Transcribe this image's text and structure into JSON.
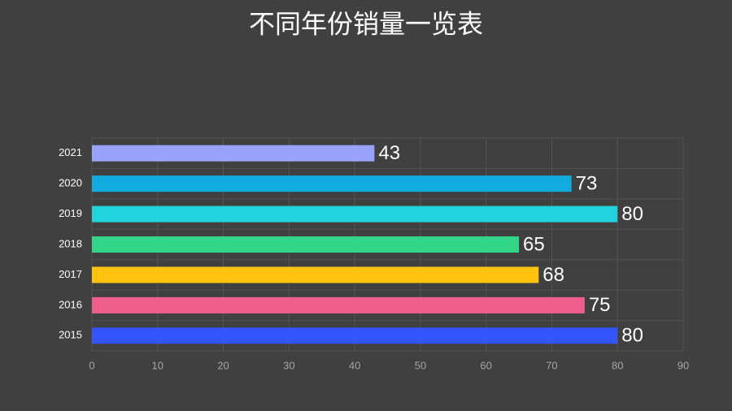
{
  "chart_data": {
    "type": "bar",
    "orientation": "horizontal",
    "title": "不同年份销量一览表",
    "categories": [
      "2015",
      "2016",
      "2017",
      "2018",
      "2019",
      "2020",
      "2021"
    ],
    "values": [
      80,
      75,
      68,
      65,
      80,
      73,
      43
    ],
    "colors": [
      "#3355fb",
      "#ef5f8d",
      "#ffc20e",
      "#33d688",
      "#22d3de",
      "#12abe0",
      "#99a3fb"
    ],
    "xlim": [
      0,
      90
    ],
    "xticks": [
      0,
      10,
      20,
      30,
      40,
      50,
      60,
      70,
      80,
      90
    ],
    "grid": true
  }
}
